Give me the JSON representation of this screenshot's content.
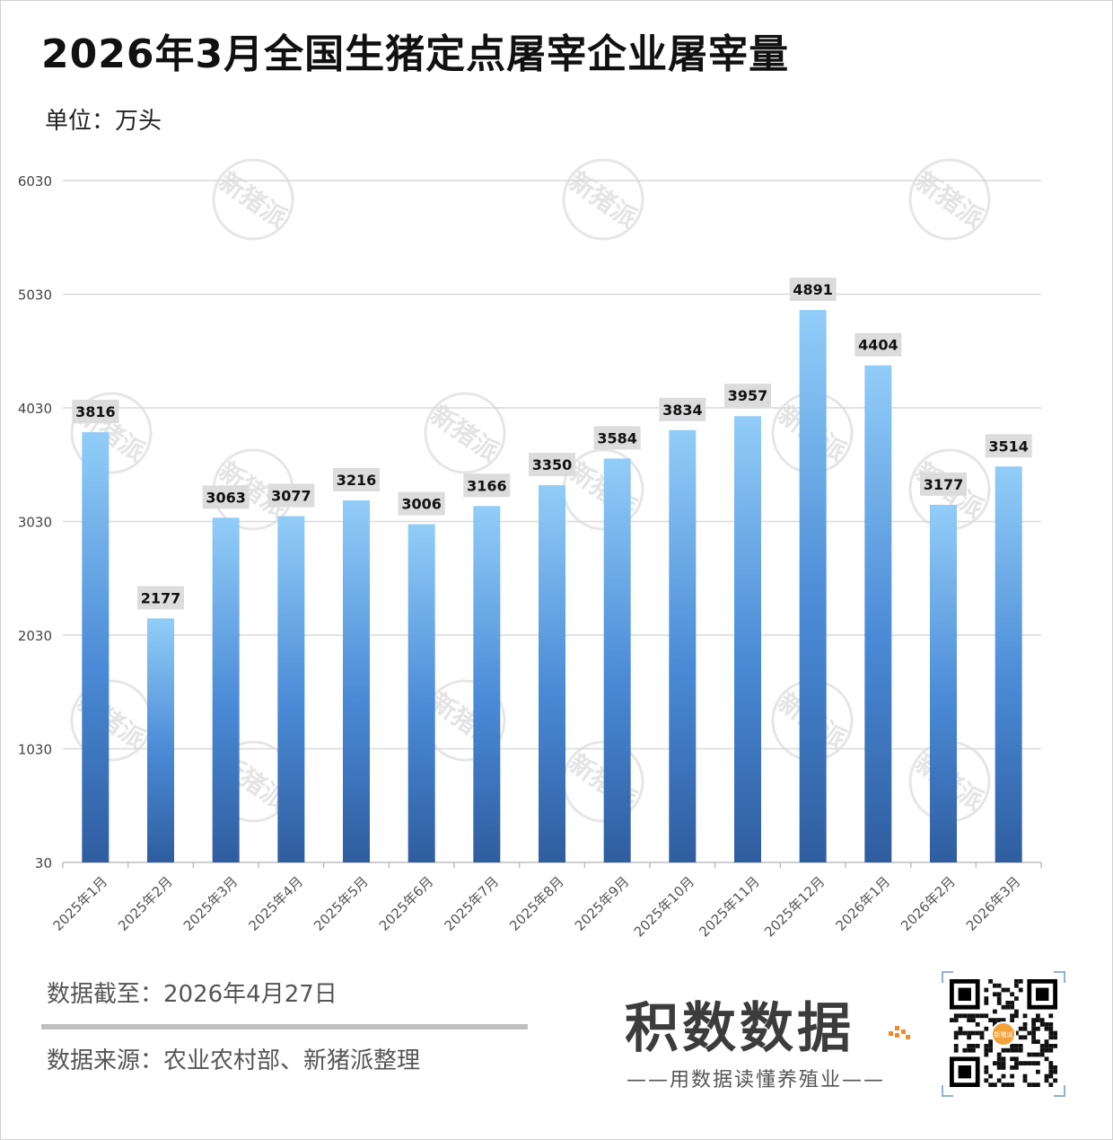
{
  "header": {
    "title": "2026年3月全国生猪定点屠宰企业屠宰量",
    "unit": "单位：万头"
  },
  "chart_data": {
    "type": "bar",
    "title": "2026年3月全国生猪定点屠宰企业屠宰量",
    "ylabel": "单位：万头",
    "xlabel": "",
    "categories": [
      "2025年1月",
      "2025年2月",
      "2025年3月",
      "2025年4月",
      "2025年5月",
      "2025年6月",
      "2025年7月",
      "2025年8月",
      "2025年9月",
      "2025年10月",
      "2025年11月",
      "2025年12月",
      "2026年1月",
      "2026年2月",
      "2026年3月"
    ],
    "values": [
      3816,
      2177,
      3063,
      3077,
      3216,
      3006,
      3166,
      3350,
      3584,
      3834,
      3957,
      4891,
      4404,
      3177,
      3514
    ],
    "ylim": [
      30,
      6030
    ],
    "yticks": [
      "30",
      "1030",
      "2030",
      "3030",
      "4030",
      "5030",
      "6030"
    ],
    "grid": true,
    "legend": "none",
    "colors": {
      "bar_top": "#92cdf8",
      "bar_mid": "#4a8ad6",
      "bar_bottom": "#2f5d9f",
      "label_bg": "#dcdcdc",
      "grid": "#d9d9d9"
    }
  },
  "watermark": {
    "text": "新猪派"
  },
  "footer": {
    "date": "数据截至：2026年4月27日",
    "source": "数据来源：农业农村部、新猪派整理",
    "brand": "积数数据",
    "slogan": "——用数据读懂养殖业——",
    "qr_logo": "新猪派"
  }
}
